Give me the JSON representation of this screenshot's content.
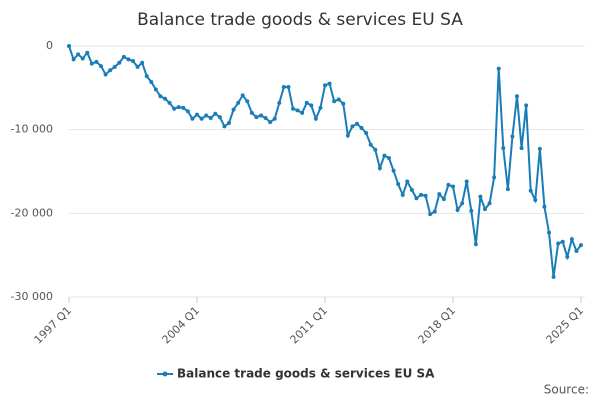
{
  "chart_data": {
    "type": "line",
    "title": "Balance trade goods & services EU SA",
    "source": "Source:",
    "categories": [
      "1997 Q1",
      null,
      null,
      null,
      null,
      null,
      null,
      null,
      null,
      null,
      null,
      null,
      null,
      null,
      null,
      null,
      null,
      null,
      null,
      null,
      null,
      null,
      null,
      null,
      null,
      null,
      null,
      null,
      "2004 Q1",
      null,
      null,
      null,
      null,
      null,
      null,
      null,
      null,
      null,
      null,
      null,
      null,
      null,
      null,
      null,
      null,
      null,
      null,
      null,
      null,
      null,
      null,
      null,
      null,
      null,
      null,
      null,
      "2011 Q1",
      null,
      null,
      null,
      null,
      null,
      null,
      null,
      null,
      null,
      null,
      null,
      null,
      null,
      null,
      null,
      null,
      null,
      null,
      null,
      null,
      null,
      null,
      null,
      null,
      null,
      null,
      null,
      "2018 Q1",
      null,
      null,
      null,
      null,
      null,
      null,
      null,
      null,
      null,
      null,
      null,
      null,
      null,
      null,
      null,
      null,
      null,
      null,
      null,
      null,
      null,
      null,
      null,
      null,
      null,
      null,
      null,
      "2025 Q1"
    ],
    "series": [
      {
        "name": "Balance trade goods & services EU SA",
        "color": "#1a7db8",
        "values": [
          0,
          -1600,
          -1000,
          -1500,
          -800,
          -2100,
          -1900,
          -2400,
          -3400,
          -2900,
          -2500,
          -2000,
          -1300,
          -1600,
          -1800,
          -2500,
          -2000,
          -3600,
          -4300,
          -5200,
          -6000,
          -6300,
          -6800,
          -7500,
          -7300,
          -7400,
          -7800,
          -8700,
          -8200,
          -8700,
          -8300,
          -8600,
          -8100,
          -8500,
          -9600,
          -9200,
          -7600,
          -6800,
          -5900,
          -6600,
          -8000,
          -8500,
          -8300,
          -8600,
          -9100,
          -8700,
          -6800,
          -4900,
          -4900,
          -7500,
          -7700,
          -8000,
          -6800,
          -7100,
          -8700,
          -7400,
          -4700,
          -4500,
          -6600,
          -6400,
          -6900,
          -10700,
          -9600,
          -9300,
          -9800,
          -10400,
          -11800,
          -12400,
          -14600,
          -13100,
          -13400,
          -14900,
          -16500,
          -17800,
          -16200,
          -17200,
          -18200,
          -17800,
          -17900,
          -20100,
          -19800,
          -17700,
          -18300,
          -16600,
          -16800,
          -19600,
          -18800,
          -16200,
          -19700,
          -23700,
          -18000,
          -19500,
          -18800,
          -15700,
          -2700,
          -12200,
          -17100,
          -10800,
          -6000,
          -12200,
          -7100,
          -17300,
          -18400,
          -12300,
          -19200,
          -22300,
          -27600,
          -23600,
          -23400,
          -25200,
          -23100,
          -24500,
          -23800
        ]
      }
    ],
    "ylim": [
      -30000,
      0
    ],
    "yticks": [
      {
        "value": -30000,
        "label": "-30 000"
      },
      {
        "value": -20000,
        "label": "-20 000"
      },
      {
        "value": -10000,
        "label": "-10 000"
      },
      0
    ],
    "grid": true
  }
}
